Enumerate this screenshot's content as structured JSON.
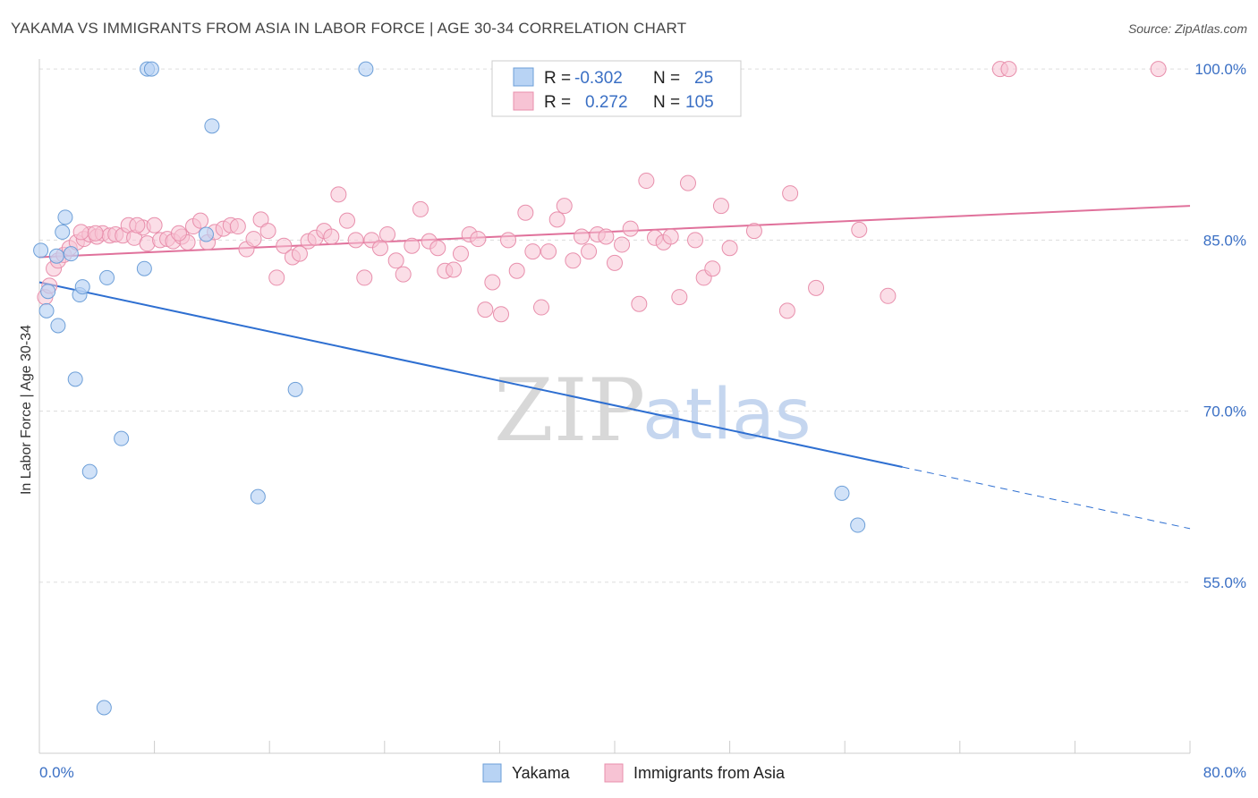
{
  "title": "YAKAMA VS IMMIGRANTS FROM ASIA IN LABOR FORCE | AGE 30-34 CORRELATION CHART",
  "source": "Source: ZipAtlas.com",
  "watermark": {
    "zip": "ZIP",
    "atlas": "atlas"
  },
  "legend": {
    "rows": [
      {
        "r_label": "R =",
        "r_value": "-0.302",
        "n_label": "N =",
        "n_value": "25"
      },
      {
        "r_label": "R =",
        "r_value": "0.272",
        "n_label": "N =",
        "n_value": "105"
      }
    ]
  },
  "bottom_legend": [
    "Yakama",
    "Immigrants from Asia"
  ],
  "colors": {
    "yakama_fill": "#b8d3f4",
    "yakama_stroke": "#6d9fd8",
    "yakama_line": "#2e6fd1",
    "asia_fill": "#f7c3d4",
    "asia_stroke": "#e88fac",
    "asia_line": "#e0719b",
    "tick_text": "#3a6fc4",
    "grid": "#dddddd"
  },
  "chart_data": {
    "type": "scatter",
    "title": "YAKAMA VS IMMIGRANTS FROM ASIA IN LABOR FORCE | AGE 30-34 CORRELATION CHART",
    "xlabel": "",
    "ylabel": "In Labor Force | Age 30-34",
    "xlim": [
      0,
      80
    ],
    "ylim": [
      40,
      101.5
    ],
    "x_tick_labels": [
      "0.0%",
      "80.0%"
    ],
    "y_ticks": [
      55,
      70,
      85,
      100
    ],
    "y_tick_labels": [
      "55.0%",
      "70.0%",
      "85.0%",
      "100.0%"
    ],
    "grid": true,
    "legend_position": "top-center",
    "series": [
      {
        "name": "Yakama",
        "r": -0.302,
        "n": 25,
        "trend": {
          "x0": 0,
          "y0": 81.3,
          "x1": 60,
          "y1": 65.1,
          "dash_to_x": 80,
          "dash_to_y": 59.7
        },
        "points": [
          [
            0.1,
            84.1
          ],
          [
            0.6,
            80.5
          ],
          [
            0.5,
            78.8
          ],
          [
            1.3,
            77.5
          ],
          [
            1.2,
            83.6
          ],
          [
            1.6,
            85.7
          ],
          [
            1.8,
            87.0
          ],
          [
            2.2,
            83.8
          ],
          [
            2.5,
            72.8
          ],
          [
            2.8,
            80.2
          ],
          [
            3.0,
            80.9
          ],
          [
            3.5,
            64.7
          ],
          [
            4.7,
            81.7
          ],
          [
            5.7,
            67.6
          ],
          [
            7.3,
            82.5
          ],
          [
            7.5,
            100.0
          ],
          [
            7.8,
            100.0
          ],
          [
            11.6,
            85.5
          ],
          [
            12.0,
            95.0
          ],
          [
            15.2,
            62.5
          ],
          [
            17.8,
            71.9
          ],
          [
            22.7,
            100.0
          ],
          [
            55.8,
            62.8
          ],
          [
            56.9,
            60.0
          ],
          [
            4.5,
            44.0
          ]
        ]
      },
      {
        "name": "Immigrants from Asia",
        "r": 0.272,
        "n": 105,
        "trend": {
          "x0": 0,
          "y0": 83.5,
          "x1": 80,
          "y1": 88.0
        },
        "points": [
          [
            0.4,
            80.0
          ],
          [
            0.7,
            81.0
          ],
          [
            1.0,
            82.5
          ],
          [
            1.3,
            83.2
          ],
          [
            1.7,
            83.7
          ],
          [
            2.1,
            84.3
          ],
          [
            2.6,
            84.8
          ],
          [
            3.1,
            85.1
          ],
          [
            3.5,
            85.5
          ],
          [
            4.0,
            85.3
          ],
          [
            4.4,
            85.6
          ],
          [
            4.9,
            85.4
          ],
          [
            5.3,
            85.5
          ],
          [
            5.8,
            85.4
          ],
          [
            6.2,
            86.3
          ],
          [
            6.6,
            85.2
          ],
          [
            7.2,
            86.1
          ],
          [
            7.5,
            84.7
          ],
          [
            8.0,
            86.3
          ],
          [
            8.4,
            85.0
          ],
          [
            8.9,
            85.1
          ],
          [
            9.3,
            84.9
          ],
          [
            9.9,
            85.3
          ],
          [
            10.3,
            84.8
          ],
          [
            10.7,
            86.2
          ],
          [
            11.2,
            86.7
          ],
          [
            11.7,
            84.8
          ],
          [
            12.2,
            85.7
          ],
          [
            12.8,
            86.0
          ],
          [
            13.3,
            86.3
          ],
          [
            13.8,
            86.2
          ],
          [
            14.4,
            84.2
          ],
          [
            14.9,
            85.1
          ],
          [
            15.4,
            86.8
          ],
          [
            15.9,
            85.8
          ],
          [
            16.5,
            81.7
          ],
          [
            17.0,
            84.5
          ],
          [
            17.6,
            83.5
          ],
          [
            18.1,
            83.8
          ],
          [
            18.7,
            84.9
          ],
          [
            19.2,
            85.2
          ],
          [
            19.8,
            85.8
          ],
          [
            20.3,
            85.3
          ],
          [
            20.8,
            89.0
          ],
          [
            21.4,
            86.7
          ],
          [
            22.0,
            85.0
          ],
          [
            22.6,
            81.7
          ],
          [
            23.1,
            85.0
          ],
          [
            23.7,
            84.3
          ],
          [
            24.2,
            85.5
          ],
          [
            24.8,
            83.2
          ],
          [
            25.3,
            82.0
          ],
          [
            25.9,
            84.5
          ],
          [
            26.5,
            87.7
          ],
          [
            27.1,
            84.9
          ],
          [
            27.7,
            84.3
          ],
          [
            28.2,
            82.3
          ],
          [
            28.8,
            82.4
          ],
          [
            29.3,
            83.8
          ],
          [
            29.9,
            85.5
          ],
          [
            30.5,
            85.1
          ],
          [
            31.0,
            78.9
          ],
          [
            31.5,
            81.3
          ],
          [
            32.1,
            78.5
          ],
          [
            32.6,
            85.0
          ],
          [
            33.2,
            82.3
          ],
          [
            33.8,
            87.4
          ],
          [
            34.3,
            84.0
          ],
          [
            34.9,
            79.1
          ],
          [
            35.4,
            84.0
          ],
          [
            36.0,
            86.8
          ],
          [
            36.5,
            88.0
          ],
          [
            37.1,
            83.2
          ],
          [
            37.7,
            85.3
          ],
          [
            38.2,
            84.0
          ],
          [
            38.8,
            85.5
          ],
          [
            39.4,
            85.3
          ],
          [
            40.0,
            83.0
          ],
          [
            40.5,
            84.6
          ],
          [
            41.1,
            86.0
          ],
          [
            41.7,
            79.4
          ],
          [
            42.2,
            90.2
          ],
          [
            42.8,
            85.2
          ],
          [
            43.4,
            84.8
          ],
          [
            43.9,
            85.3
          ],
          [
            44.5,
            80.0
          ],
          [
            45.1,
            90.0
          ],
          [
            45.6,
            85.0
          ],
          [
            46.2,
            81.7
          ],
          [
            46.8,
            82.5
          ],
          [
            47.4,
            88.0
          ],
          [
            48.0,
            84.3
          ],
          [
            49.7,
            85.8
          ],
          [
            52.0,
            78.8
          ],
          [
            52.2,
            89.1
          ],
          [
            54.0,
            80.8
          ],
          [
            57.0,
            85.9
          ],
          [
            59.0,
            80.1
          ],
          [
            66.8,
            100.0
          ],
          [
            67.4,
            100.0
          ],
          [
            77.8,
            100.0
          ],
          [
            2.9,
            85.7
          ],
          [
            3.9,
            85.6
          ],
          [
            6.8,
            86.3
          ],
          [
            9.7,
            85.6
          ]
        ]
      }
    ]
  }
}
